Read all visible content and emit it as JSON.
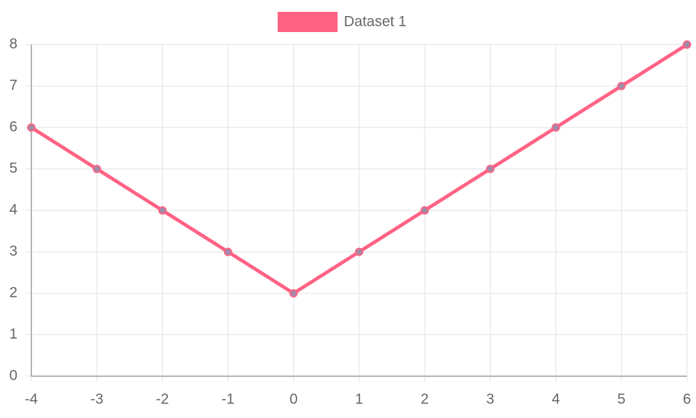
{
  "chart_data": {
    "type": "line",
    "x": [
      -4,
      -3,
      -2,
      -1,
      0,
      1,
      2,
      3,
      4,
      5,
      6
    ],
    "series": [
      {
        "name": "Dataset 1",
        "color": "#ff6384",
        "point_color": "#a08aa8",
        "values": [
          6,
          5,
          4,
          3,
          2,
          3,
          4,
          5,
          6,
          7,
          8
        ]
      }
    ],
    "xlim": [
      -4,
      6
    ],
    "xticks": [
      -4,
      -3,
      -2,
      -1,
      0,
      1,
      2,
      3,
      4,
      5,
      6
    ],
    "ylim": [
      0,
      8
    ],
    "yticks": [
      0,
      1,
      2,
      3,
      4,
      5,
      6,
      7,
      8
    ],
    "grid": true,
    "legend": "top"
  }
}
